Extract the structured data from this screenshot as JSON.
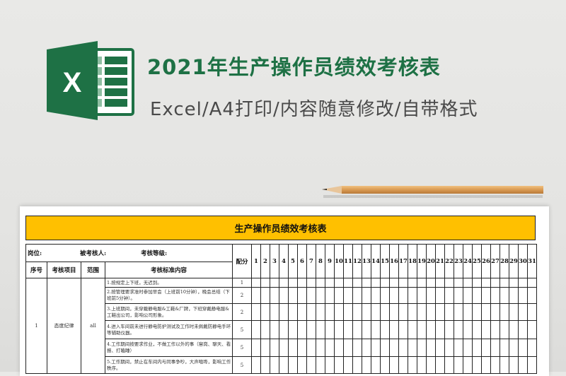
{
  "banner": {
    "title": "2021年生产操作员绩效考核表",
    "subtitle": "Excel/A4打印/内容随意修改/自带格式",
    "logo_letter": "X",
    "brand_color": "#1e7145"
  },
  "sheet": {
    "title": "生产操作员绩效考核表",
    "title_bg": "#ffc000",
    "info": {
      "post": "岗位:",
      "assessee": "被考核人:",
      "grade": "考核等级:"
    },
    "headers": {
      "no": "序号",
      "item": "考核项目",
      "scope": "范围",
      "content": "考核标准内容",
      "score": "配分"
    },
    "days": [
      "1",
      "2",
      "3",
      "4",
      "5",
      "6",
      "7",
      "8",
      "9",
      "10",
      "11",
      "12",
      "13",
      "14",
      "15",
      "16",
      "17",
      "18",
      "19",
      "20",
      "21",
      "22",
      "23",
      "24",
      "25",
      "26",
      "27",
      "28",
      "29",
      "30",
      "31"
    ],
    "group": {
      "no": "1",
      "item": "态度纪律",
      "scope": "all"
    },
    "rows": [
      {
        "content": "1.按规定上下班，无迟到。",
        "score": "1"
      },
      {
        "content": "2.按管理要求准时参加早会（上班前10分钟），晚会总结（下班前5分钟）。",
        "score": "2"
      },
      {
        "content": "3.上班期间，未穿戴静电服&工鞋&厂牌，下班穿戴静电服&工鞋出公司，影响公司形象。",
        "score": "2"
      },
      {
        "content": "4.进入车间前未进行静电防护测试及工作时未佩戴防静电手环等辅助仪器。",
        "score": "5"
      },
      {
        "content": "4.工作期间按要求作业，不做工作以外的事（窜岗、聊天、看报、打瞌睡）",
        "score": "5"
      },
      {
        "content": "5.工作期间，禁止在车间内与同事争吵，大声喧哗，影响工作秩序。",
        "score": "5"
      }
    ]
  }
}
